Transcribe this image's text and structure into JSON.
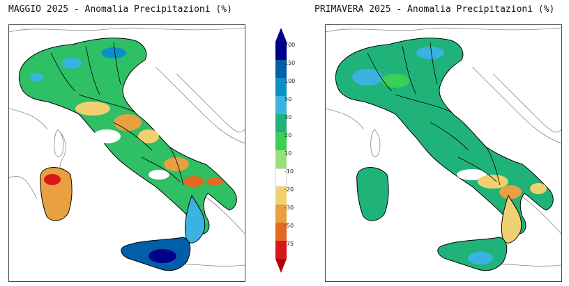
{
  "left_panel": {
    "title": "MAGGIO 2025 - Anomalia Precipitazioni (%)"
  },
  "right_panel": {
    "title": "PRIMAVERA 2025 - Anomalia Precipitazioni (%)"
  },
  "legend": {
    "labels": [
      "200",
      "150",
      "100",
      "50",
      "30",
      "20",
      "10",
      "-10",
      "-20",
      "-30",
      "-50",
      "-75"
    ],
    "colors": [
      "#00008b",
      "#005fa8",
      "#0a8fc9",
      "#3bb3e0",
      "#1fb37a",
      "#3ccf55",
      "#98e07a",
      "#ffffff",
      "#f0d070",
      "#e8a040",
      "#e06a20",
      "#d81818",
      "#b00000"
    ]
  },
  "colors": {
    "land_default": "#2fbf64",
    "sea": "#ffffff",
    "border": "#000000",
    "coast_other": "#888888"
  }
}
